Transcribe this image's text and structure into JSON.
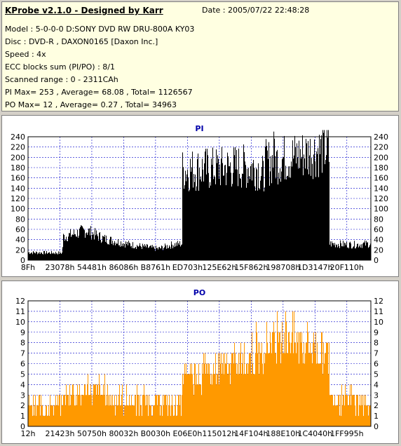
{
  "info": {
    "title": "KProbe v2.1.0 - Designed by Karr",
    "date": "Date : 2005/07/22 22:48:28",
    "lines": [
      "Model : 5-0-0-0 D:SONY    DVD RW DRU-800A  KY03",
      "Disc : DVD-R , DAXON0165 [Daxon Inc.]",
      "Speed : 4x",
      "ECC blocks sum (PI/PO) : 8/1",
      "Scanned range : 0 - 2311CAh",
      "PI Max= 253 , Average= 68.08 , Total= 1126567",
      "PO Max= 12 , Average= 0.27 , Total= 34963"
    ]
  },
  "colors": {
    "pi_fill": "#000000",
    "po_fill": "#ff9900",
    "title": "#0000aa",
    "grid": "#0000cc",
    "info_bg": "#ffffe1",
    "frame_bg": "#d4d0c8"
  },
  "chart_data": [
    {
      "type": "area",
      "title": "PI",
      "x_ticks": [
        "8Fh",
        "23078h",
        "54481h",
        "86086h",
        "B8761h",
        "ED703h",
        "125E62h",
        "15F862h",
        "198708h",
        "1D3147h",
        "20F110h"
      ],
      "y_ticks": [
        0,
        20,
        40,
        60,
        80,
        100,
        120,
        140,
        160,
        180,
        200,
        220,
        240
      ],
      "ylim": [
        0,
        253
      ],
      "grid": true,
      "spike": {
        "x": 0.717,
        "value": 253
      },
      "series": [
        {
          "x": [
            0,
            0.1,
            0.101,
            0.17,
            0.22,
            0.3,
            0.38,
            0.42,
            0.449,
            0.45,
            0.55,
            0.62,
            0.67,
            0.689,
            0.69,
            0.75,
            0.8,
            0.879,
            0.88,
            0.95,
            1.0
          ],
          "values": [
            15,
            14,
            45,
            58,
            42,
            30,
            22,
            30,
            32,
            175,
            178,
            182,
            180,
            160,
            188,
            198,
            205,
            218,
            32,
            30,
            32
          ]
        }
      ]
    },
    {
      "type": "area",
      "title": "PO",
      "x_ticks": [
        "12h",
        "21423h",
        "50750h",
        "80032h",
        "B0030h",
        "E06E0h",
        "115012h",
        "14F104h",
        "188E10h",
        "1C4040h",
        "1FF995h"
      ],
      "y_ticks": [
        0,
        1,
        2,
        3,
        4,
        5,
        6,
        7,
        8,
        9,
        10,
        11,
        12
      ],
      "ylim": [
        0,
        12
      ],
      "grid": true,
      "series": [
        {
          "x": [
            0,
            0.1,
            0.101,
            0.2,
            0.27,
            0.449,
            0.45,
            0.55,
            0.6,
            0.62,
            0.67,
            0.689,
            0.69,
            0.75,
            0.8,
            0.879,
            0.88,
            1.0
          ],
          "values": [
            2,
            2,
            3,
            3.5,
            2.5,
            2,
            5,
            5.5,
            6,
            6.5,
            7,
            7,
            8,
            9,
            8,
            7,
            3,
            2
          ]
        }
      ]
    }
  ]
}
